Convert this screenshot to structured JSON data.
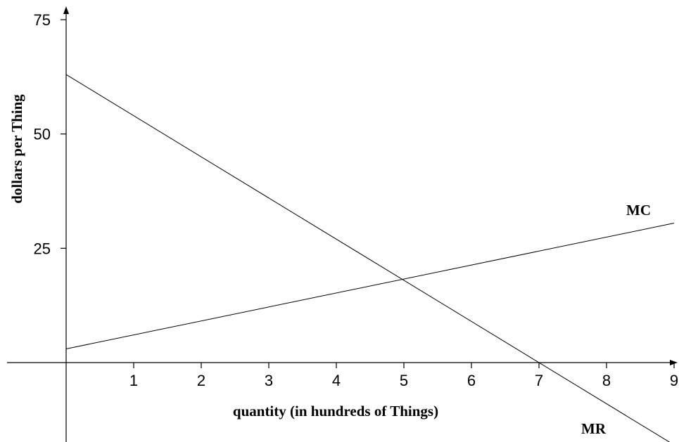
{
  "chart_data": {
    "type": "line",
    "title": "",
    "xlabel": "quantity (in hundreds of Things)",
    "ylabel": "dollars per Thing",
    "xlim": [
      0,
      9
    ],
    "ylim": [
      -15.3,
      76
    ],
    "x_ticks": [
      "1",
      "2",
      "3",
      "4",
      "5",
      "6",
      "7",
      "8",
      "9"
    ],
    "y_ticks": [
      "25",
      "50",
      "75"
    ],
    "grid": false,
    "legend": "none",
    "series": [
      {
        "name": "MC",
        "x": [
          0,
          9
        ],
        "y": [
          3,
          30.5
        ]
      },
      {
        "name": "MR",
        "x": [
          0,
          9
        ],
        "y": [
          63,
          -18
        ]
      }
    ]
  }
}
